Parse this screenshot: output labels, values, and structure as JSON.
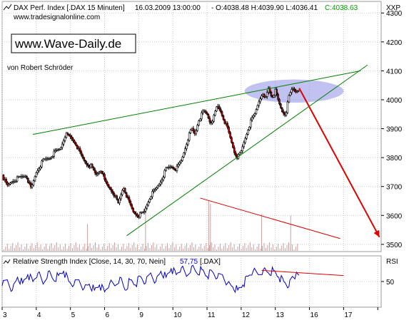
{
  "chart_data": [
    {
      "type": "candlestick",
      "header": {
        "title": "DAX Perf. Index [.DAX  15 Minuten]",
        "datetime": "16.03.2009 13:00:00",
        "ohlc": "- O:4038.48 H:4039.90 L:4036.41",
        "close": "C:4038.63",
        "url": "www.tradesignalonline.com"
      },
      "axis_label": "XXP",
      "brand_box": "www.Wave-Daily.de",
      "author": "von Robert Schröder",
      "ylim": [
        3475,
        4340
      ],
      "yticks": [
        3500,
        3600,
        3700,
        3800,
        3900,
        4000,
        4100,
        4200,
        4300
      ],
      "x_ticks": [
        "3",
        "4",
        "5",
        "6",
        "9",
        "10",
        "11",
        "12",
        "13",
        "16",
        "17"
      ],
      "x_day_positions": [
        0,
        1,
        2,
        3,
        4,
        5,
        6,
        7,
        8,
        9,
        10,
        11
      ],
      "xlim": [
        0,
        11.1
      ],
      "price_path": [
        [
          0.0,
          3740
        ],
        [
          0.15,
          3700
        ],
        [
          0.3,
          3720
        ],
        [
          0.5,
          3730
        ],
        [
          0.7,
          3740
        ],
        [
          0.85,
          3690
        ],
        [
          1.0,
          3750
        ],
        [
          1.2,
          3790
        ],
        [
          1.4,
          3800
        ],
        [
          1.55,
          3820
        ],
        [
          1.7,
          3830
        ],
        [
          1.85,
          3880
        ],
        [
          2.0,
          3870
        ],
        [
          2.15,
          3850
        ],
        [
          2.3,
          3810
        ],
        [
          2.45,
          3780
        ],
        [
          2.6,
          3770
        ],
        [
          2.75,
          3740
        ],
        [
          2.9,
          3760
        ],
        [
          3.0,
          3720
        ],
        [
          3.1,
          3700
        ],
        [
          3.25,
          3680
        ],
        [
          3.4,
          3640
        ],
        [
          3.55,
          3700
        ],
        [
          3.7,
          3650
        ],
        [
          3.85,
          3610
        ],
        [
          4.0,
          3600
        ],
        [
          4.15,
          3610
        ],
        [
          4.25,
          3640
        ],
        [
          4.35,
          3670
        ],
        [
          4.5,
          3690
        ],
        [
          4.65,
          3720
        ],
        [
          4.8,
          3760
        ],
        [
          4.95,
          3770
        ],
        [
          5.1,
          3760
        ],
        [
          5.25,
          3790
        ],
        [
          5.35,
          3830
        ],
        [
          5.45,
          3870
        ],
        [
          5.55,
          3900
        ],
        [
          5.65,
          3880
        ],
        [
          5.75,
          3930
        ],
        [
          5.9,
          3960
        ],
        [
          6.0,
          3950
        ],
        [
          6.1,
          3920
        ],
        [
          6.2,
          3940
        ],
        [
          6.3,
          3980
        ],
        [
          6.4,
          3960
        ],
        [
          6.5,
          3930
        ],
        [
          6.6,
          3900
        ],
        [
          6.7,
          3860
        ],
        [
          6.8,
          3820
        ],
        [
          6.9,
          3800
        ],
        [
          7.0,
          3820
        ],
        [
          7.1,
          3860
        ],
        [
          7.2,
          3900
        ],
        [
          7.3,
          3930
        ],
        [
          7.4,
          3950
        ],
        [
          7.5,
          3990
        ],
        [
          7.6,
          4020
        ],
        [
          7.7,
          4000
        ],
        [
          7.8,
          4040
        ],
        [
          7.9,
          4010
        ],
        [
          8.0,
          4030
        ],
        [
          8.1,
          3990
        ],
        [
          8.2,
          3960
        ],
        [
          8.3,
          3950
        ],
        [
          8.4,
          4010
        ],
        [
          8.5,
          4040
        ],
        [
          8.6,
          4030
        ],
        [
          8.7,
          4040
        ]
      ],
      "volume_spikes": [
        [
          2.5,
          3570
        ],
        [
          4.2,
          3620
        ],
        [
          6.05,
          3650
        ],
        [
          6.1,
          3640
        ],
        [
          7.6,
          3605
        ],
        [
          8.45,
          3600
        ]
      ],
      "annotations": {
        "lines": [
          {
            "color": "#008000",
            "points": [
              [
                0.9,
                3880
              ],
              [
                10.5,
                4100
              ]
            ]
          },
          {
            "color": "#008000",
            "points": [
              [
                3.65,
                3530
              ],
              [
                10.7,
                4120
              ]
            ]
          },
          {
            "color": "#e00000",
            "points": [
              [
                5.8,
                3660
              ],
              [
                9.9,
                3520
              ]
            ]
          }
        ],
        "arrow": {
          "color": "#e00000",
          "from": [
            8.7,
            4040
          ],
          "to": [
            11.05,
            3525
          ]
        },
        "ellipse": {
          "center": [
            8.55,
            4030
          ],
          "rx": 1.45,
          "ry": 40,
          "color": "#8f8fe8"
        }
      }
    },
    {
      "type": "line",
      "title": "Relative Strength Index [Close, 14, 30, 70, Nein]",
      "value": "57,75",
      "symbol": "[.DAX]",
      "axis_label": "RSI",
      "ylim": [
        20,
        80
      ],
      "yticks": [
        50
      ],
      "series": [
        {
          "values": [
            [
              0.0,
              45
            ],
            [
              0.15,
              52
            ],
            [
              0.3,
              40
            ],
            [
              0.45,
              55
            ],
            [
              0.6,
              48
            ],
            [
              0.75,
              58
            ],
            [
              0.9,
              50
            ],
            [
              1.05,
              60
            ],
            [
              1.2,
              47
            ],
            [
              1.35,
              62
            ],
            [
              1.5,
              52
            ],
            [
              1.65,
              57
            ],
            [
              1.8,
              62
            ],
            [
              1.95,
              50
            ],
            [
              2.1,
              46
            ],
            [
              2.25,
              52
            ],
            [
              2.4,
              42
            ],
            [
              2.55,
              47
            ],
            [
              2.7,
              40
            ],
            [
              2.85,
              46
            ],
            [
              3.0,
              38
            ],
            [
              3.15,
              48
            ],
            [
              3.3,
              45
            ],
            [
              3.45,
              55
            ],
            [
              3.6,
              40
            ],
            [
              3.75,
              52
            ],
            [
              3.9,
              46
            ],
            [
              4.05,
              56
            ],
            [
              4.2,
              48
            ],
            [
              4.35,
              60
            ],
            [
              4.5,
              50
            ],
            [
              4.65,
              62
            ],
            [
              4.8,
              55
            ],
            [
              4.95,
              65
            ],
            [
              5.1,
              58
            ],
            [
              5.25,
              66
            ],
            [
              5.4,
              56
            ],
            [
              5.55,
              68
            ],
            [
              5.7,
              60
            ],
            [
              5.85,
              64
            ],
            [
              6.0,
              56
            ],
            [
              6.15,
              62
            ],
            [
              6.3,
              54
            ],
            [
              6.45,
              58
            ],
            [
              6.6,
              48
            ],
            [
              6.75,
              44
            ],
            [
              6.9,
              40
            ],
            [
              7.05,
              46
            ],
            [
              7.2,
              56
            ],
            [
              7.35,
              62
            ],
            [
              7.5,
              58
            ],
            [
              7.65,
              64
            ],
            [
              7.8,
              60
            ],
            [
              7.95,
              63
            ],
            [
              8.1,
              55
            ],
            [
              8.25,
              50
            ],
            [
              8.4,
              44
            ],
            [
              8.5,
              56
            ],
            [
              8.6,
              58
            ],
            [
              8.7,
              57.75
            ]
          ]
        }
      ],
      "annotations": {
        "lines": [
          {
            "color": "#e00000",
            "points": [
              [
                7.6,
                63
              ],
              [
                10.0,
                57
              ]
            ]
          }
        ]
      }
    }
  ]
}
